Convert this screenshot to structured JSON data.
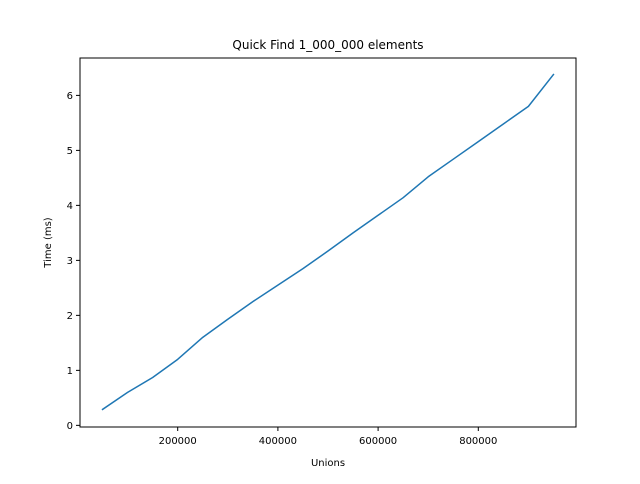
{
  "chart_data": {
    "type": "line",
    "title": "Quick Find 1_000_000 elements",
    "xlabel": "Unions",
    "ylabel": "Time (ms)",
    "xlim": [
      5000,
      995000
    ],
    "ylim": [
      -0.03,
      6.68
    ],
    "xticks": [
      200000,
      400000,
      600000,
      800000
    ],
    "xtick_labels": [
      "200000",
      "400000",
      "600000",
      "800000"
    ],
    "yticks": [
      0,
      1,
      2,
      3,
      4,
      5,
      6
    ],
    "ytick_labels": [
      "0",
      "1",
      "2",
      "3",
      "4",
      "5",
      "6"
    ],
    "grid": false,
    "series": [
      {
        "color": "#1f77b4",
        "x": [
          50000,
          100000,
          150000,
          200000,
          250000,
          300000,
          350000,
          400000,
          450000,
          500000,
          550000,
          600000,
          650000,
          700000,
          750000,
          800000,
          850000,
          900000,
          950000
        ],
        "y": [
          0.29,
          0.6,
          0.87,
          1.2,
          1.6,
          1.93,
          2.25,
          2.55,
          2.85,
          3.17,
          3.5,
          3.82,
          4.14,
          4.52,
          4.84,
          5.16,
          5.48,
          5.8,
          6.38
        ]
      }
    ]
  }
}
